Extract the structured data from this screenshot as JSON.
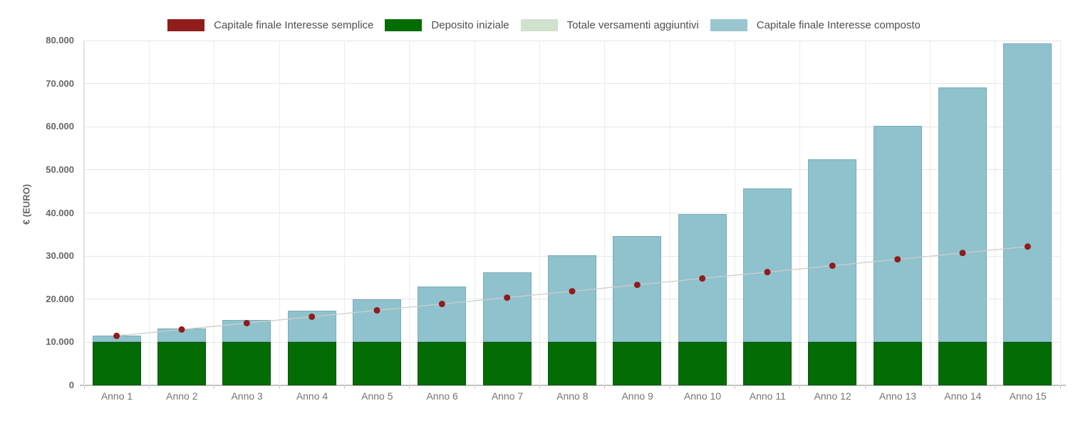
{
  "page": {
    "background": "#ffffff"
  },
  "legend": {
    "items": [
      {
        "label": "Capitale finale Interesse semplice",
        "color": "#911c1c"
      },
      {
        "label": "Deposito iniziale",
        "color": "#046c04"
      },
      {
        "label": "Totale versamenti aggiuntivi",
        "color": "#d0e1ce"
      },
      {
        "label": "Capitale finale Interesse composto",
        "color": "#9ac6d0"
      }
    ]
  },
  "chart_data": {
    "type": "bar",
    "title": "",
    "xlabel": "",
    "ylabel": "€ (EURO)",
    "categories": [
      "Anno 1",
      "Anno 2",
      "Anno 3",
      "Anno 4",
      "Anno 5",
      "Anno 6",
      "Anno 7",
      "Anno 8",
      "Anno 9",
      "Anno 10",
      "Anno 11",
      "Anno 12",
      "Anno 13",
      "Anno 14",
      "Anno 15"
    ],
    "ylim": [
      0,
      80000
    ],
    "ytick_interval": 10000,
    "ytick_labels": [
      "0",
      "10.000",
      "20.000",
      "30.000",
      "40.000",
      "50.000",
      "60.000",
      "70.000",
      "80.000"
    ],
    "grid": true,
    "legend_position": "top",
    "series": [
      {
        "name": "Capitale finale Interesse semplice",
        "type": "line",
        "marker": "circle",
        "color": "#911c1c",
        "line_color": "#cdcdcd",
        "values": [
          11480,
          12960,
          14440,
          15920,
          17400,
          18880,
          20360,
          21840,
          23320,
          24800,
          26280,
          27760,
          29240,
          30720,
          32200
        ]
      },
      {
        "name": "Deposito iniziale",
        "type": "column-stacked",
        "color": "#046c04",
        "values": [
          10000,
          10000,
          10000,
          10000,
          10000,
          10000,
          10000,
          10000,
          10000,
          10000,
          10000,
          10000,
          10000,
          10000,
          10000
        ]
      },
      {
        "name": "Totale versamenti aggiuntivi",
        "type": "column-stacked",
        "color": "#d0e1ce",
        "values": [
          0,
          0,
          0,
          0,
          0,
          0,
          0,
          0,
          0,
          0,
          0,
          0,
          0,
          0,
          0
        ]
      },
      {
        "name": "Capitale finale Interesse composto",
        "type": "column-stacked",
        "color": "#8fc2cd",
        "stack_base": "Deposito iniziale",
        "values": [
          11480,
          13179,
          15130,
          17369,
          19939,
          22890,
          26278,
          30167,
          34632,
          39757,
          45642,
          52397,
          60151,
          69054,
          79274
        ]
      }
    ]
  }
}
